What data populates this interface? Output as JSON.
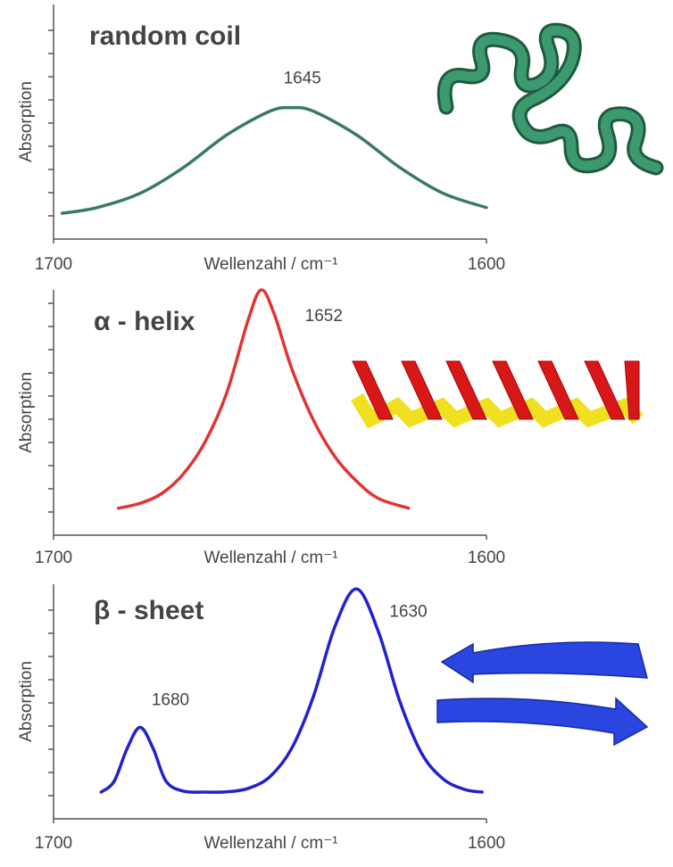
{
  "chart_data": [
    {
      "type": "line",
      "title": "random coil",
      "title_color": "#2b7a2b",
      "color": "#3a7a62",
      "x_label": "Wellenzahl / cm⁻¹",
      "y_label": "Absorption",
      "xlim": [
        1700,
        1600
      ],
      "xticks": [
        1700,
        1600
      ],
      "ylim": [
        0,
        1
      ],
      "x": [
        1698,
        1690,
        1680,
        1670,
        1660,
        1650,
        1645,
        1640,
        1630,
        1620,
        1610,
        1600
      ],
      "values": [
        0.11,
        0.134,
        0.195,
        0.305,
        0.444,
        0.545,
        0.56,
        0.545,
        0.444,
        0.305,
        0.195,
        0.134
      ],
      "peaks": [
        1645
      ]
    },
    {
      "type": "line",
      "title": "α - helix",
      "title_color": "#e01818",
      "color": "#e03434",
      "x_label": "Wellenzahl / cm⁻¹",
      "y_label": "Absorption",
      "xlim": [
        1700,
        1600
      ],
      "xticks": [
        1700,
        1600
      ],
      "ylim": [
        0,
        1
      ],
      "x": [
        1685,
        1680,
        1675,
        1670,
        1665,
        1660,
        1655,
        1652,
        1649,
        1645,
        1640,
        1635,
        1630,
        1625,
        1618
      ],
      "values": [
        0.11,
        0.13,
        0.17,
        0.25,
        0.38,
        0.58,
        0.88,
        1.0,
        0.9,
        0.68,
        0.47,
        0.32,
        0.22,
        0.15,
        0.11
      ],
      "peaks": [
        1652
      ]
    },
    {
      "type": "line",
      "title": "β - sheet",
      "title_color": "#2020d8",
      "color": "#2222cc",
      "x_label": "Wellenzahl / cm⁻¹",
      "y_label": "Absorption",
      "xlim": [
        1700,
        1600
      ],
      "xticks": [
        1700,
        1600
      ],
      "ylim": [
        0,
        1
      ],
      "x": [
        1689,
        1686,
        1683,
        1680,
        1677,
        1674,
        1670,
        1665,
        1660,
        1655,
        1650,
        1645,
        1640,
        1635,
        1630,
        1625,
        1620,
        1615,
        1610,
        1605,
        1601
      ],
      "values": [
        0.114,
        0.16,
        0.3,
        0.39,
        0.3,
        0.16,
        0.118,
        0.114,
        0.115,
        0.13,
        0.18,
        0.3,
        0.52,
        0.82,
        0.98,
        0.8,
        0.5,
        0.28,
        0.17,
        0.125,
        0.114
      ],
      "peaks": [
        1630,
        1680
      ]
    }
  ]
}
